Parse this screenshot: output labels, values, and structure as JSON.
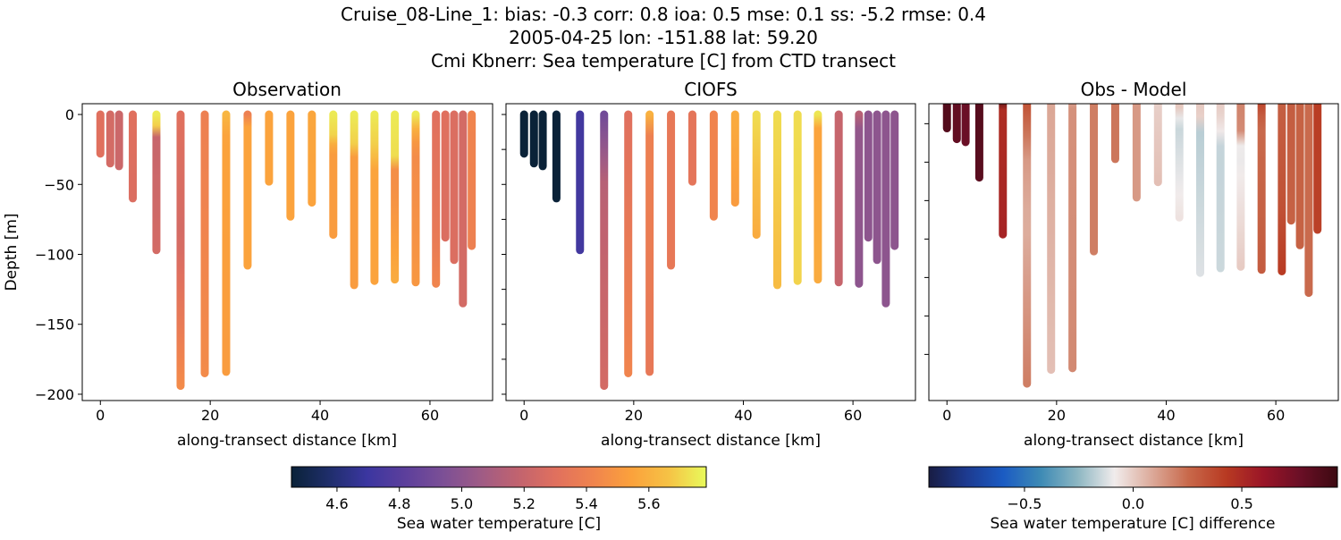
{
  "title_lines": [
    "Cruise_08-Line_1: bias: -0.3  corr: 0.8  ioa: 0.5  mse: 0.1  ss: -5.2  rmse: 0.4",
    "2005-04-25 lon: -151.88 lat: 59.20",
    "Cmi Kbnerr: Sea temperature [C] from CTD transect"
  ],
  "chart_data": [
    {
      "type": "scatter",
      "title": "Observation",
      "xlabel": "along-transect distance [km]",
      "ylabel": "Depth [m]",
      "xlim": [
        -3.3,
        71.4
      ],
      "ylim": [
        -204.5,
        7.7
      ],
      "xticks": [
        0,
        20,
        40,
        60
      ],
      "yticks": [
        0,
        -50,
        -100,
        -150,
        -200
      ],
      "ytick_labels": true,
      "field": "obs",
      "colormap": "thermal"
    },
    {
      "type": "scatter",
      "title": "CIOFS",
      "xlabel": "along-transect distance [km]",
      "ylabel": "",
      "xlim": [
        -3.3,
        71.4
      ],
      "ylim": [
        -204.5,
        7.7
      ],
      "xticks": [
        0,
        20,
        40,
        60
      ],
      "yticks": [
        0,
        -25,
        -50,
        -75,
        -100,
        -125,
        -150,
        -175,
        -200
      ],
      "ytick_labels": false,
      "field": "model",
      "colormap": "thermal"
    },
    {
      "type": "scatter",
      "title": "Obs - Model",
      "xlabel": "along-transect distance [km]",
      "ylabel": "",
      "xlim": [
        -3.3,
        71.4
      ],
      "ylim": [
        -205,
        -12
      ],
      "xticks": [
        0,
        20,
        40,
        60
      ],
      "yticks": [
        -25,
        -50,
        -75,
        -100,
        -125,
        -150,
        -175
      ],
      "ytick_labels": false,
      "field": "diff",
      "colormap": "balance"
    }
  ],
  "stations": [
    {
      "km": 0,
      "bottom": -28,
      "obs": [
        [
          0,
          5.3
        ],
        [
          -28,
          5.3
        ]
      ],
      "model": [
        [
          0,
          4.45
        ],
        [
          -28,
          4.45
        ]
      ]
    },
    {
      "km": 1.8,
      "bottom": -35,
      "obs": [
        [
          0,
          5.25
        ],
        [
          -35,
          5.25
        ]
      ],
      "model": [
        [
          0,
          4.45
        ],
        [
          -35,
          4.45
        ]
      ]
    },
    {
      "km": 3.4,
      "bottom": -37,
      "obs": [
        [
          0,
          5.22
        ],
        [
          -37,
          5.22
        ]
      ],
      "model": [
        [
          0,
          4.45
        ],
        [
          -37,
          4.45
        ]
      ]
    },
    {
      "km": 5.9,
      "bottom": -60,
      "obs": [
        [
          0,
          5.3
        ],
        [
          -60,
          5.28
        ]
      ],
      "model": [
        [
          0,
          4.45
        ],
        [
          -60,
          4.45
        ]
      ]
    },
    {
      "km": 10.2,
      "bottom": -97,
      "obs": [
        [
          0,
          5.75
        ],
        [
          -8,
          5.7
        ],
        [
          -12,
          5.2
        ],
        [
          -97,
          5.25
        ]
      ],
      "model": [
        [
          0,
          4.72
        ],
        [
          -97,
          4.72
        ]
      ]
    },
    {
      "km": 14.6,
      "bottom": -194,
      "obs": [
        [
          0,
          5.3
        ],
        [
          -90,
          5.25
        ],
        [
          -194,
          5.45
        ]
      ],
      "model": [
        [
          0,
          4.9
        ],
        [
          -50,
          5.15
        ],
        [
          -194,
          5.25
        ]
      ]
    },
    {
      "km": 19,
      "bottom": -185,
      "obs": [
        [
          0,
          5.4
        ],
        [
          -185,
          5.45
        ]
      ],
      "model": [
        [
          0,
          5.3
        ],
        [
          -185,
          5.42
        ]
      ]
    },
    {
      "km": 22.9,
      "bottom": -184,
      "obs": [
        [
          0,
          5.62
        ],
        [
          -10,
          5.55
        ],
        [
          -184,
          5.52
        ]
      ],
      "model": [
        [
          0,
          5.6
        ],
        [
          -10,
          5.4
        ],
        [
          -184,
          5.35
        ]
      ]
    },
    {
      "km": 26.8,
      "bottom": -108,
      "obs": [
        [
          0,
          5.4
        ],
        [
          -8,
          5.55
        ],
        [
          -108,
          5.55
        ]
      ],
      "model": [
        [
          0,
          5.35
        ],
        [
          -108,
          5.35
        ]
      ]
    },
    {
      "km": 30.7,
      "bottom": -48,
      "obs": [
        [
          0,
          5.55
        ],
        [
          -48,
          5.55
        ]
      ],
      "model": [
        [
          0,
          5.33
        ],
        [
          -48,
          5.33
        ]
      ]
    },
    {
      "km": 34.6,
      "bottom": -73,
      "obs": [
        [
          0,
          5.55
        ],
        [
          -73,
          5.55
        ]
      ],
      "model": [
        [
          0,
          5.42
        ],
        [
          -73,
          5.42
        ]
      ]
    },
    {
      "km": 38.5,
      "bottom": -63,
      "obs": [
        [
          0,
          5.56
        ],
        [
          -63,
          5.55
        ]
      ],
      "model": [
        [
          0,
          5.58
        ],
        [
          -63,
          5.52
        ]
      ]
    },
    {
      "km": 42.4,
      "bottom": -86,
      "obs": [
        [
          0,
          5.75
        ],
        [
          -15,
          5.7
        ],
        [
          -25,
          5.52
        ],
        [
          -86,
          5.52
        ]
      ],
      "model": [
        [
          0,
          5.72
        ],
        [
          -86,
          5.58
        ]
      ]
    },
    {
      "km": 46.2,
      "bottom": -122,
      "obs": [
        [
          0,
          5.75
        ],
        [
          -20,
          5.7
        ],
        [
          -30,
          5.52
        ],
        [
          -122,
          5.52
        ]
      ],
      "model": [
        [
          0,
          5.72
        ],
        [
          -122,
          5.64
        ]
      ]
    },
    {
      "km": 49.9,
      "bottom": -119,
      "obs": [
        [
          0,
          5.75
        ],
        [
          -25,
          5.68
        ],
        [
          -40,
          5.55
        ],
        [
          -119,
          5.55
        ]
      ],
      "model": [
        [
          0,
          5.72
        ],
        [
          -119,
          5.7
        ]
      ]
    },
    {
      "km": 53.6,
      "bottom": -118,
      "obs": [
        [
          0,
          5.75
        ],
        [
          -30,
          5.72
        ],
        [
          -40,
          5.45
        ],
        [
          -118,
          5.58
        ]
      ],
      "model": [
        [
          0,
          5.74
        ],
        [
          -10,
          5.55
        ],
        [
          -118,
          5.58
        ]
      ]
    },
    {
      "km": 57.4,
      "bottom": -120,
      "obs": [
        [
          0,
          5.75
        ],
        [
          -10,
          5.6
        ],
        [
          -25,
          5.45
        ],
        [
          -120,
          5.5
        ]
      ],
      "model": [
        [
          0,
          5.2
        ],
        [
          -120,
          5.2
        ]
      ]
    },
    {
      "km": 61.1,
      "bottom": -121,
      "obs": [
        [
          0,
          5.3
        ],
        [
          -80,
          5.35
        ],
        [
          -121,
          5.42
        ]
      ],
      "model": [
        [
          0,
          5.15
        ],
        [
          -5,
          5.02
        ],
        [
          -121,
          5.0
        ]
      ]
    },
    {
      "km": 62.8,
      "bottom": -88,
      "obs": [
        [
          0,
          5.3
        ],
        [
          -88,
          5.28
        ]
      ],
      "model": [
        [
          0,
          5.0
        ],
        [
          -88,
          5.0
        ]
      ]
    },
    {
      "km": 64.4,
      "bottom": -104,
      "obs": [
        [
          0,
          5.28
        ],
        [
          -104,
          5.28
        ]
      ],
      "model": [
        [
          0,
          5.0
        ],
        [
          -104,
          5.0
        ]
      ]
    },
    {
      "km": 66,
      "bottom": -135,
      "obs": [
        [
          0,
          5.25
        ],
        [
          -135,
          5.25
        ]
      ],
      "model": [
        [
          0,
          5.0
        ],
        [
          -135,
          5.0
        ]
      ]
    },
    {
      "km": 67.6,
      "bottom": -94,
      "obs": [
        [
          0,
          5.42
        ],
        [
          -94,
          5.4
        ]
      ],
      "model": [
        [
          0,
          5.0
        ],
        [
          -94,
          5.0
        ]
      ]
    }
  ],
  "colorbars": [
    {
      "label": "Sea water temperature [C]",
      "vmin": 4.454,
      "vmax": 5.784,
      "ticks": [
        "4.6",
        "4.8",
        "5.0",
        "5.2",
        "5.4",
        "5.6"
      ],
      "colormap": "thermal"
    },
    {
      "label": "Sea water temperature [C] difference",
      "vmin": -0.94,
      "vmax": 0.94,
      "ticks": [
        "−0.5",
        "0.0",
        "0.5"
      ],
      "colormap": "balance"
    }
  ],
  "colormaps": {
    "thermal": [
      "#0a2238",
      "#1f2e6b",
      "#3b36a0",
      "#5c3f9c",
      "#7b4f96",
      "#9e5b86",
      "#c1636f",
      "#e0705e",
      "#f0844e",
      "#fba13c",
      "#f6c245",
      "#e8fa5b"
    ],
    "balance": [
      "#181c43",
      "#1d3a8f",
      "#1b5bc3",
      "#3d8ab5",
      "#8cb6c2",
      "#f1ecec",
      "#dcaa9a",
      "#c8684a",
      "#b83a22",
      "#9a1527",
      "#6a0f26",
      "#3c0911"
    ]
  }
}
